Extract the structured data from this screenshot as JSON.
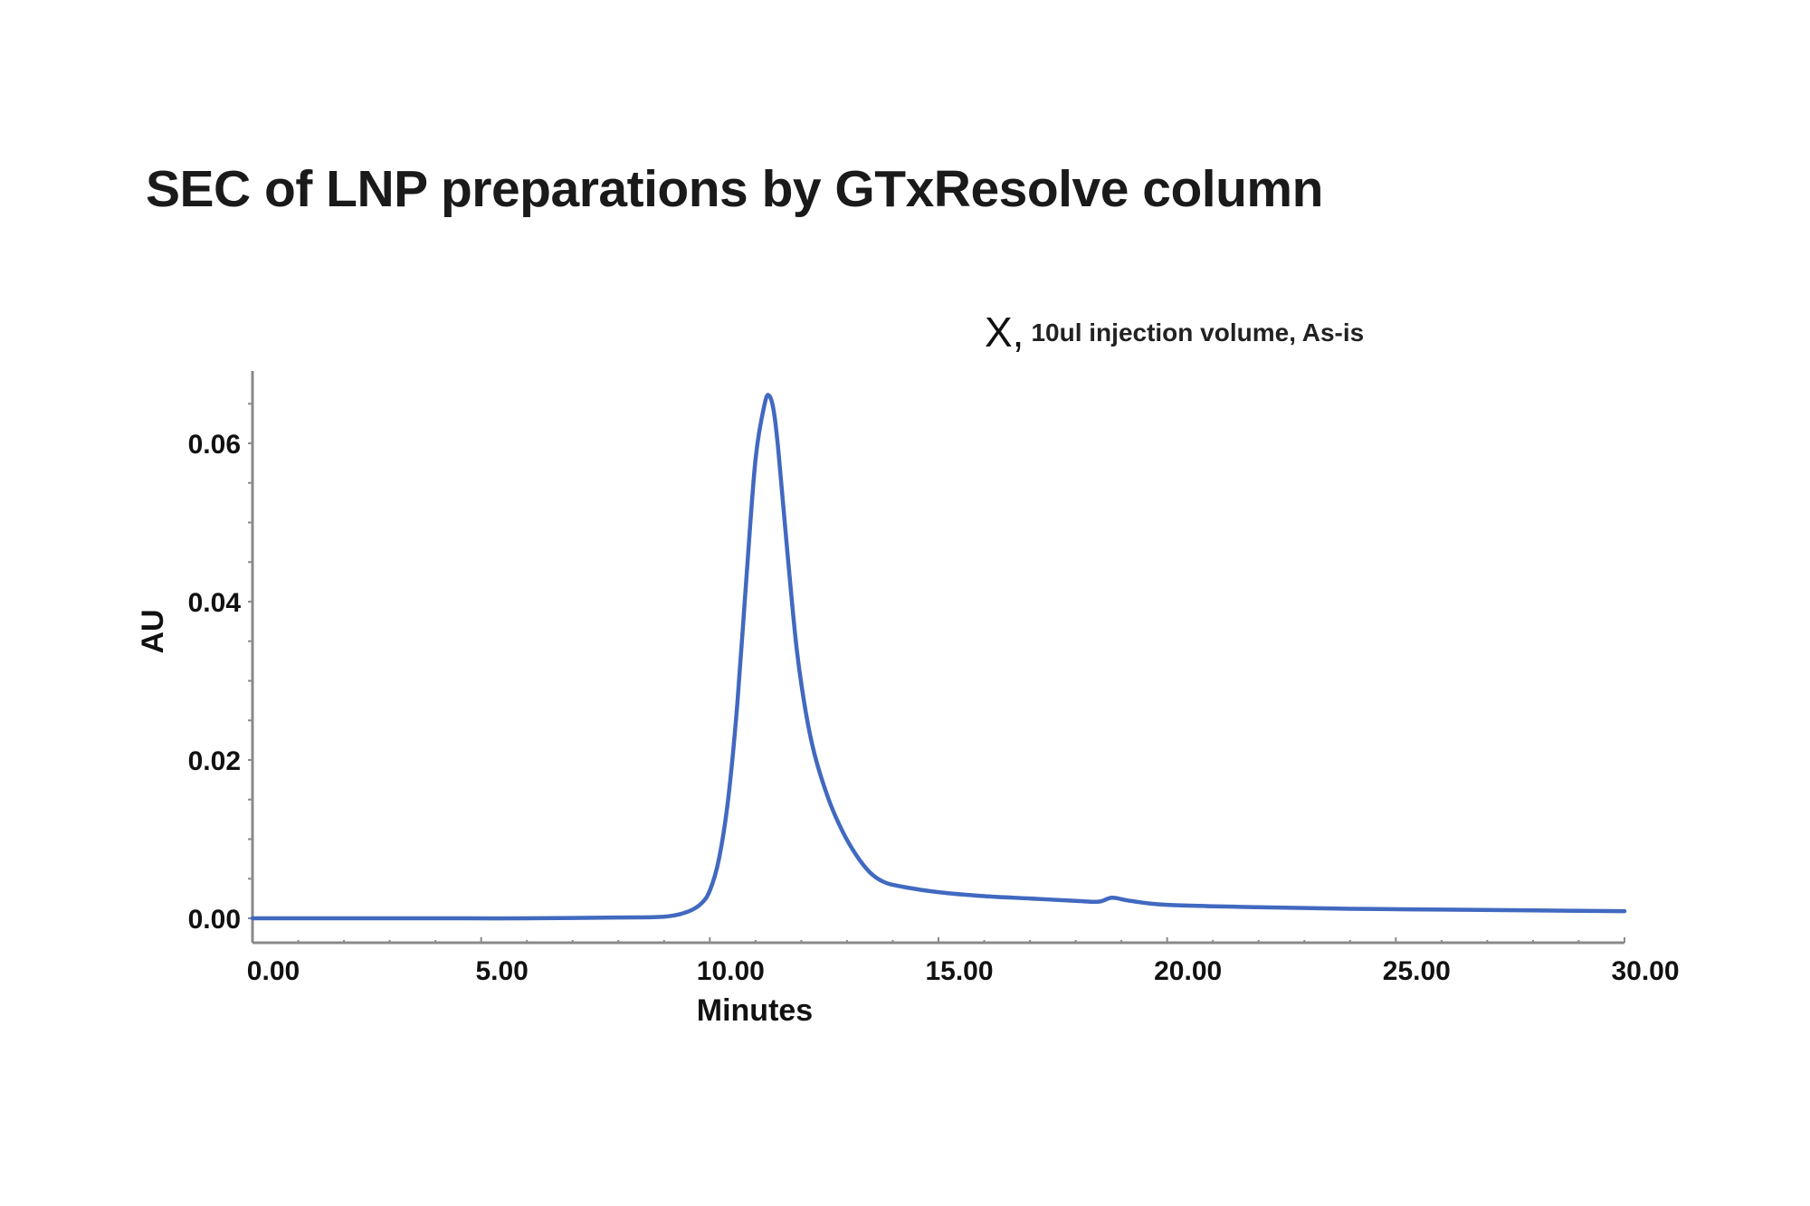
{
  "title": "SEC of LNP preparations by GTxResolve column",
  "annotation": {
    "marker": "X,",
    "text": "10ul injection volume, As-is"
  },
  "axes": {
    "xlabel": "Minutes",
    "ylabel": "AU",
    "xticks": [
      "0.00",
      "5.00",
      "10.00",
      "15.00",
      "20.00",
      "25.00",
      "30.00"
    ],
    "yticks": [
      "0.00",
      "0.02",
      "0.04",
      "0.06"
    ]
  },
  "colors": {
    "trace": "#4169c0",
    "axis": "#8a8a8a"
  },
  "chart_data": {
    "type": "line",
    "title": "SEC of LNP preparations by GTxResolve column",
    "subtitle": "X, 10ul injection volume, As-is",
    "xlabel": "Minutes",
    "ylabel": "AU",
    "xlim": [
      0,
      30
    ],
    "ylim": [
      -0.003,
      0.069
    ],
    "xticks": [
      0,
      5,
      10,
      15,
      20,
      25,
      30
    ],
    "yticks": [
      0.0,
      0.02,
      0.04,
      0.06
    ],
    "grid": false,
    "legend": null,
    "series": [
      {
        "name": "X, 10ul injection volume, As-is",
        "x": [
          0,
          2,
          4,
          6,
          8,
          9,
          9.5,
          9.8,
          10.0,
          10.2,
          10.4,
          10.6,
          10.8,
          11.0,
          11.2,
          11.3,
          11.4,
          11.5,
          11.7,
          11.9,
          12.1,
          12.3,
          12.6,
          12.9,
          13.2,
          13.5,
          13.8,
          14.2,
          15,
          16,
          17,
          18,
          18.5,
          18.8,
          19.2,
          20,
          22,
          24,
          26,
          28,
          30
        ],
        "y": [
          0.0,
          0.0,
          0.0,
          0.0,
          0.0001,
          0.0002,
          0.0008,
          0.0018,
          0.0035,
          0.0075,
          0.015,
          0.027,
          0.043,
          0.058,
          0.065,
          0.066,
          0.064,
          0.059,
          0.046,
          0.034,
          0.026,
          0.0205,
          0.015,
          0.011,
          0.008,
          0.0058,
          0.0046,
          0.004,
          0.0033,
          0.0028,
          0.0025,
          0.0022,
          0.0021,
          0.0026,
          0.0022,
          0.0017,
          0.0014,
          0.0012,
          0.0011,
          0.001,
          0.0009
        ]
      }
    ]
  }
}
